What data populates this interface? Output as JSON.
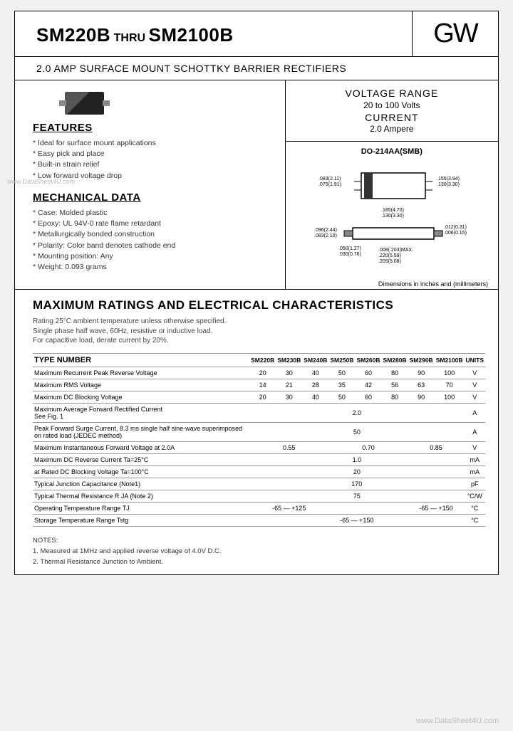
{
  "header": {
    "part_from": "SM220B",
    "thru": "THRU",
    "part_to": "SM2100B",
    "logo": "GW"
  },
  "subtitle": "2.0 AMP SURFACE MOUNT SCHOTTKY BARRIER RECTIFIERS",
  "specs": {
    "voltage_label": "VOLTAGE RANGE",
    "voltage_value": "20 to 100 Volts",
    "current_label": "CURRENT",
    "current_value": "2.0 Ampere"
  },
  "package": {
    "name": "DO-214AA(SMB)",
    "dims_top_left": ".083(2.11)\n.075(1.91)",
    "dims_top_right": ".155(3.94)\n.130(3.30)",
    "dims_mid": ".185(4.70)\n.130(3.30)",
    "dims_bot1": ".096(2.44)\n.083(2.10)",
    "dims_bot2": ".050(1.27)\n.030(0.76)",
    "dims_bot3": ".008(.203)MAX.\n.220(5.59)\n.205(5.08)",
    "dims_rt": ".012(0.31)\n.006(0.15)",
    "note": "Dimensions in inches and (millimeters)"
  },
  "features": {
    "heading": "FEATURES",
    "items": [
      "Ideal for surface mount applications",
      "Easy pick and place",
      "Built-in strain relief",
      "Low forward voltage drop"
    ]
  },
  "mechanical": {
    "heading": "MECHANICAL DATA",
    "items": [
      "Case: Molded plastic",
      "Epoxy: UL 94V-0 rate flame retardant",
      "Metallurgically bonded construction",
      "Polarity: Color band denotes cathode end",
      "Mounting position: Any",
      "Weight: 0.093 grams"
    ]
  },
  "ratings": {
    "heading": "MAXIMUM RATINGS AND ELECTRICAL CHARACTERISTICS",
    "note": "Rating 25°C ambient temperature unless otherwise specified.\nSingle phase half wave, 60Hz, resistive or inductive load.\nFor capacitive load, derate current by 20%.",
    "type_label": "TYPE NUMBER",
    "columns": [
      "SM220B",
      "SM230B",
      "SM240B",
      "SM250B",
      "SM260B",
      "SM280B",
      "SM290B",
      "SM2100B"
    ],
    "units_label": "UNITS",
    "rows": [
      {
        "param": "Maximum Recurrent Peak Reverse Voltage",
        "vals": [
          "20",
          "30",
          "40",
          "50",
          "60",
          "80",
          "90",
          "100"
        ],
        "unit": "V"
      },
      {
        "param": "Maximum RMS Voltage",
        "vals": [
          "14",
          "21",
          "28",
          "35",
          "42",
          "56",
          "63",
          "70"
        ],
        "unit": "V"
      },
      {
        "param": "Maximum DC Blocking Voltage",
        "vals": [
          "20",
          "30",
          "40",
          "50",
          "60",
          "80",
          "90",
          "100"
        ],
        "unit": "V"
      },
      {
        "param": "Maximum Average Forward Rectified Current\nSee Fig. 1",
        "span": "2.0",
        "unit": "A"
      },
      {
        "param": "Peak Forward Surge Current, 8.3 ms single half sine-wave superimposed on rated load (JEDEC method)",
        "span": "50",
        "unit": "A"
      },
      {
        "param": "Maximum Instantaneous Forward Voltage at 2.0A",
        "groups": [
          {
            "span": 3,
            "val": "0.55"
          },
          {
            "span": 3,
            "val": "0.70"
          },
          {
            "span": 2,
            "val": "0.85"
          }
        ],
        "unit": "V"
      },
      {
        "param": "Maximum DC Reverse Current        Ta=25°C",
        "span": "1.0",
        "unit": "mA"
      },
      {
        "param": "at Rated DC Blocking Voltage        Ta=100°C",
        "span": "20",
        "unit": "mA"
      },
      {
        "param": "Typical Junction Capacitance (Note1)",
        "span": "170",
        "unit": "pF"
      },
      {
        "param": "Typical Thermal Resistance R JA (Note 2)",
        "span": "75",
        "unit": "°C/W"
      },
      {
        "param": "Operating Temperature Range TJ",
        "groups": [
          {
            "span": 3,
            "val": "-65 — +125"
          },
          {
            "span": 3,
            "val": ""
          },
          {
            "span": 2,
            "val": "-65 — +150"
          }
        ],
        "unit": "°C"
      },
      {
        "param": "Storage Temperature Range Tstg",
        "span": "-65 — +150",
        "unit": "°C"
      }
    ]
  },
  "notes": {
    "heading": "NOTES:",
    "items": [
      "1. Measured at 1MHz and applied reverse voltage of 4.0V D.C.",
      "2. Thermal Resistance Junction to Ambient."
    ]
  },
  "watermarks": {
    "left": "www.DataSheet4U.com",
    "right": "www.DataSheet4U.com"
  },
  "colors": {
    "border": "#000000",
    "text": "#000000",
    "muted": "#444444",
    "table_border": "#999999",
    "watermark": "#bbbbbb",
    "background": "#ffffff"
  }
}
